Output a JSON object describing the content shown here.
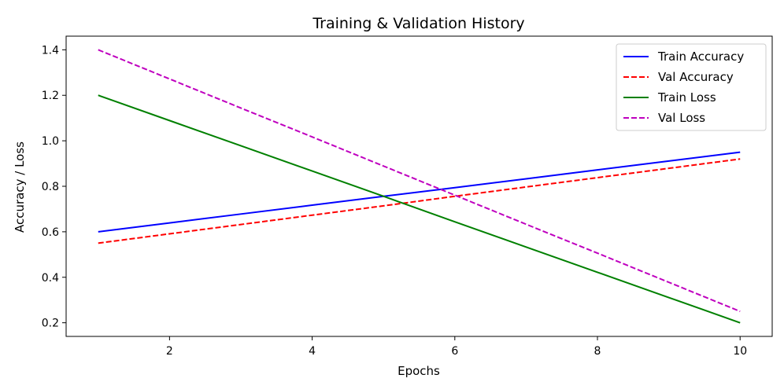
{
  "chart_data": {
    "type": "line",
    "title": "Training & Validation History",
    "xlabel": "Epochs",
    "ylabel": "Accuracy / Loss",
    "xlim": [
      0.55,
      10.45
    ],
    "ylim": [
      0.14,
      1.46
    ],
    "xticks": [
      2,
      4,
      6,
      8,
      10
    ],
    "yticks": [
      0.2,
      0.4,
      0.6,
      0.8,
      1.0,
      1.2,
      1.4
    ],
    "xtick_labels": [
      "2",
      "4",
      "6",
      "8",
      "10"
    ],
    "ytick_labels": [
      "0.2",
      "0.4",
      "0.6",
      "0.8",
      "1.0",
      "1.2",
      "1.4"
    ],
    "grid": false,
    "legend_position": "upper right",
    "x": [
      1,
      2,
      3,
      4,
      5,
      6,
      7,
      8,
      9,
      10
    ],
    "series": [
      {
        "name": "Train Accuracy",
        "color": "#0000ff",
        "style": "solid",
        "values": [
          0.6,
          0.639,
          0.678,
          0.717,
          0.756,
          0.794,
          0.833,
          0.872,
          0.911,
          0.95
        ]
      },
      {
        "name": "Val Accuracy",
        "color": "#ff0000",
        "style": "dashed",
        "values": [
          0.55,
          0.591,
          0.632,
          0.673,
          0.714,
          0.756,
          0.797,
          0.838,
          0.879,
          0.92
        ]
      },
      {
        "name": "Train Loss",
        "color": "#008000",
        "style": "solid",
        "values": [
          1.2,
          1.089,
          0.978,
          0.867,
          0.756,
          0.644,
          0.533,
          0.422,
          0.311,
          0.2
        ]
      },
      {
        "name": "Val Loss",
        "color": "#bf00bf",
        "style": "dashed",
        "values": [
          1.4,
          1.272,
          1.144,
          1.017,
          0.889,
          0.761,
          0.633,
          0.506,
          0.378,
          0.25
        ]
      }
    ]
  }
}
